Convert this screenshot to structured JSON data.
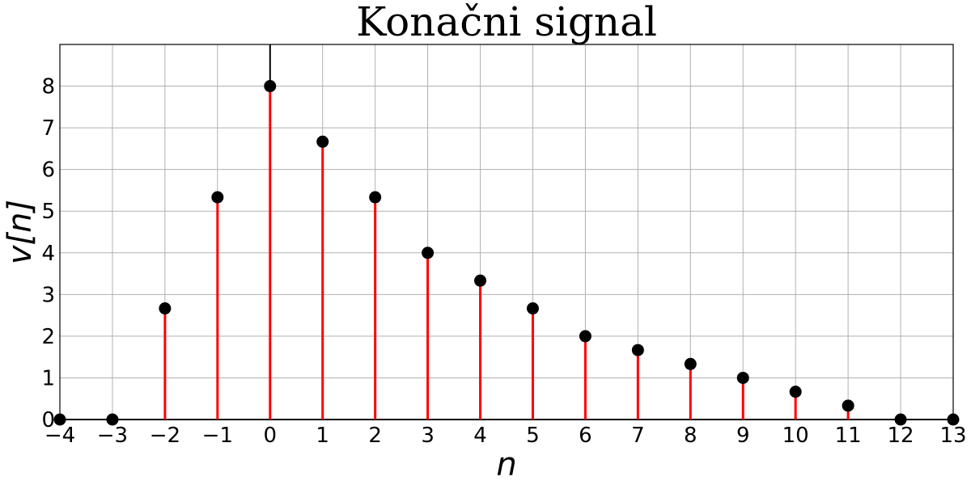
{
  "chart_data": {
    "type": "stem",
    "title": "Konačni signal",
    "xlabel": "n",
    "ylabel": "v[n]",
    "x": [
      -4,
      -3,
      -2,
      -1,
      0,
      1,
      2,
      3,
      4,
      5,
      6,
      7,
      8,
      9,
      10,
      11,
      12,
      13
    ],
    "values": [
      0,
      0,
      2.6667,
      5.3333,
      8,
      6.6667,
      5.3333,
      4,
      3.3333,
      2.6667,
      2,
      1.6667,
      1.3333,
      1,
      0.6667,
      0.3333,
      0,
      0
    ],
    "xlim": [
      -4,
      13
    ],
    "ylim": [
      0,
      9
    ],
    "x_ticks": [
      "−4",
      "−3",
      "−2",
      "−1",
      "0",
      "1",
      "2",
      "3",
      "4",
      "5",
      "6",
      "7",
      "8",
      "9",
      "10",
      "11",
      "12",
      "13"
    ],
    "y_ticks": [
      "0",
      "1",
      "2",
      "3",
      "4",
      "5",
      "6",
      "7",
      "8"
    ],
    "grid": true,
    "colors": {
      "stem": "#ff0000",
      "marker": "#000000",
      "grid": "#b0b0b0",
      "axis": "#000000"
    }
  }
}
